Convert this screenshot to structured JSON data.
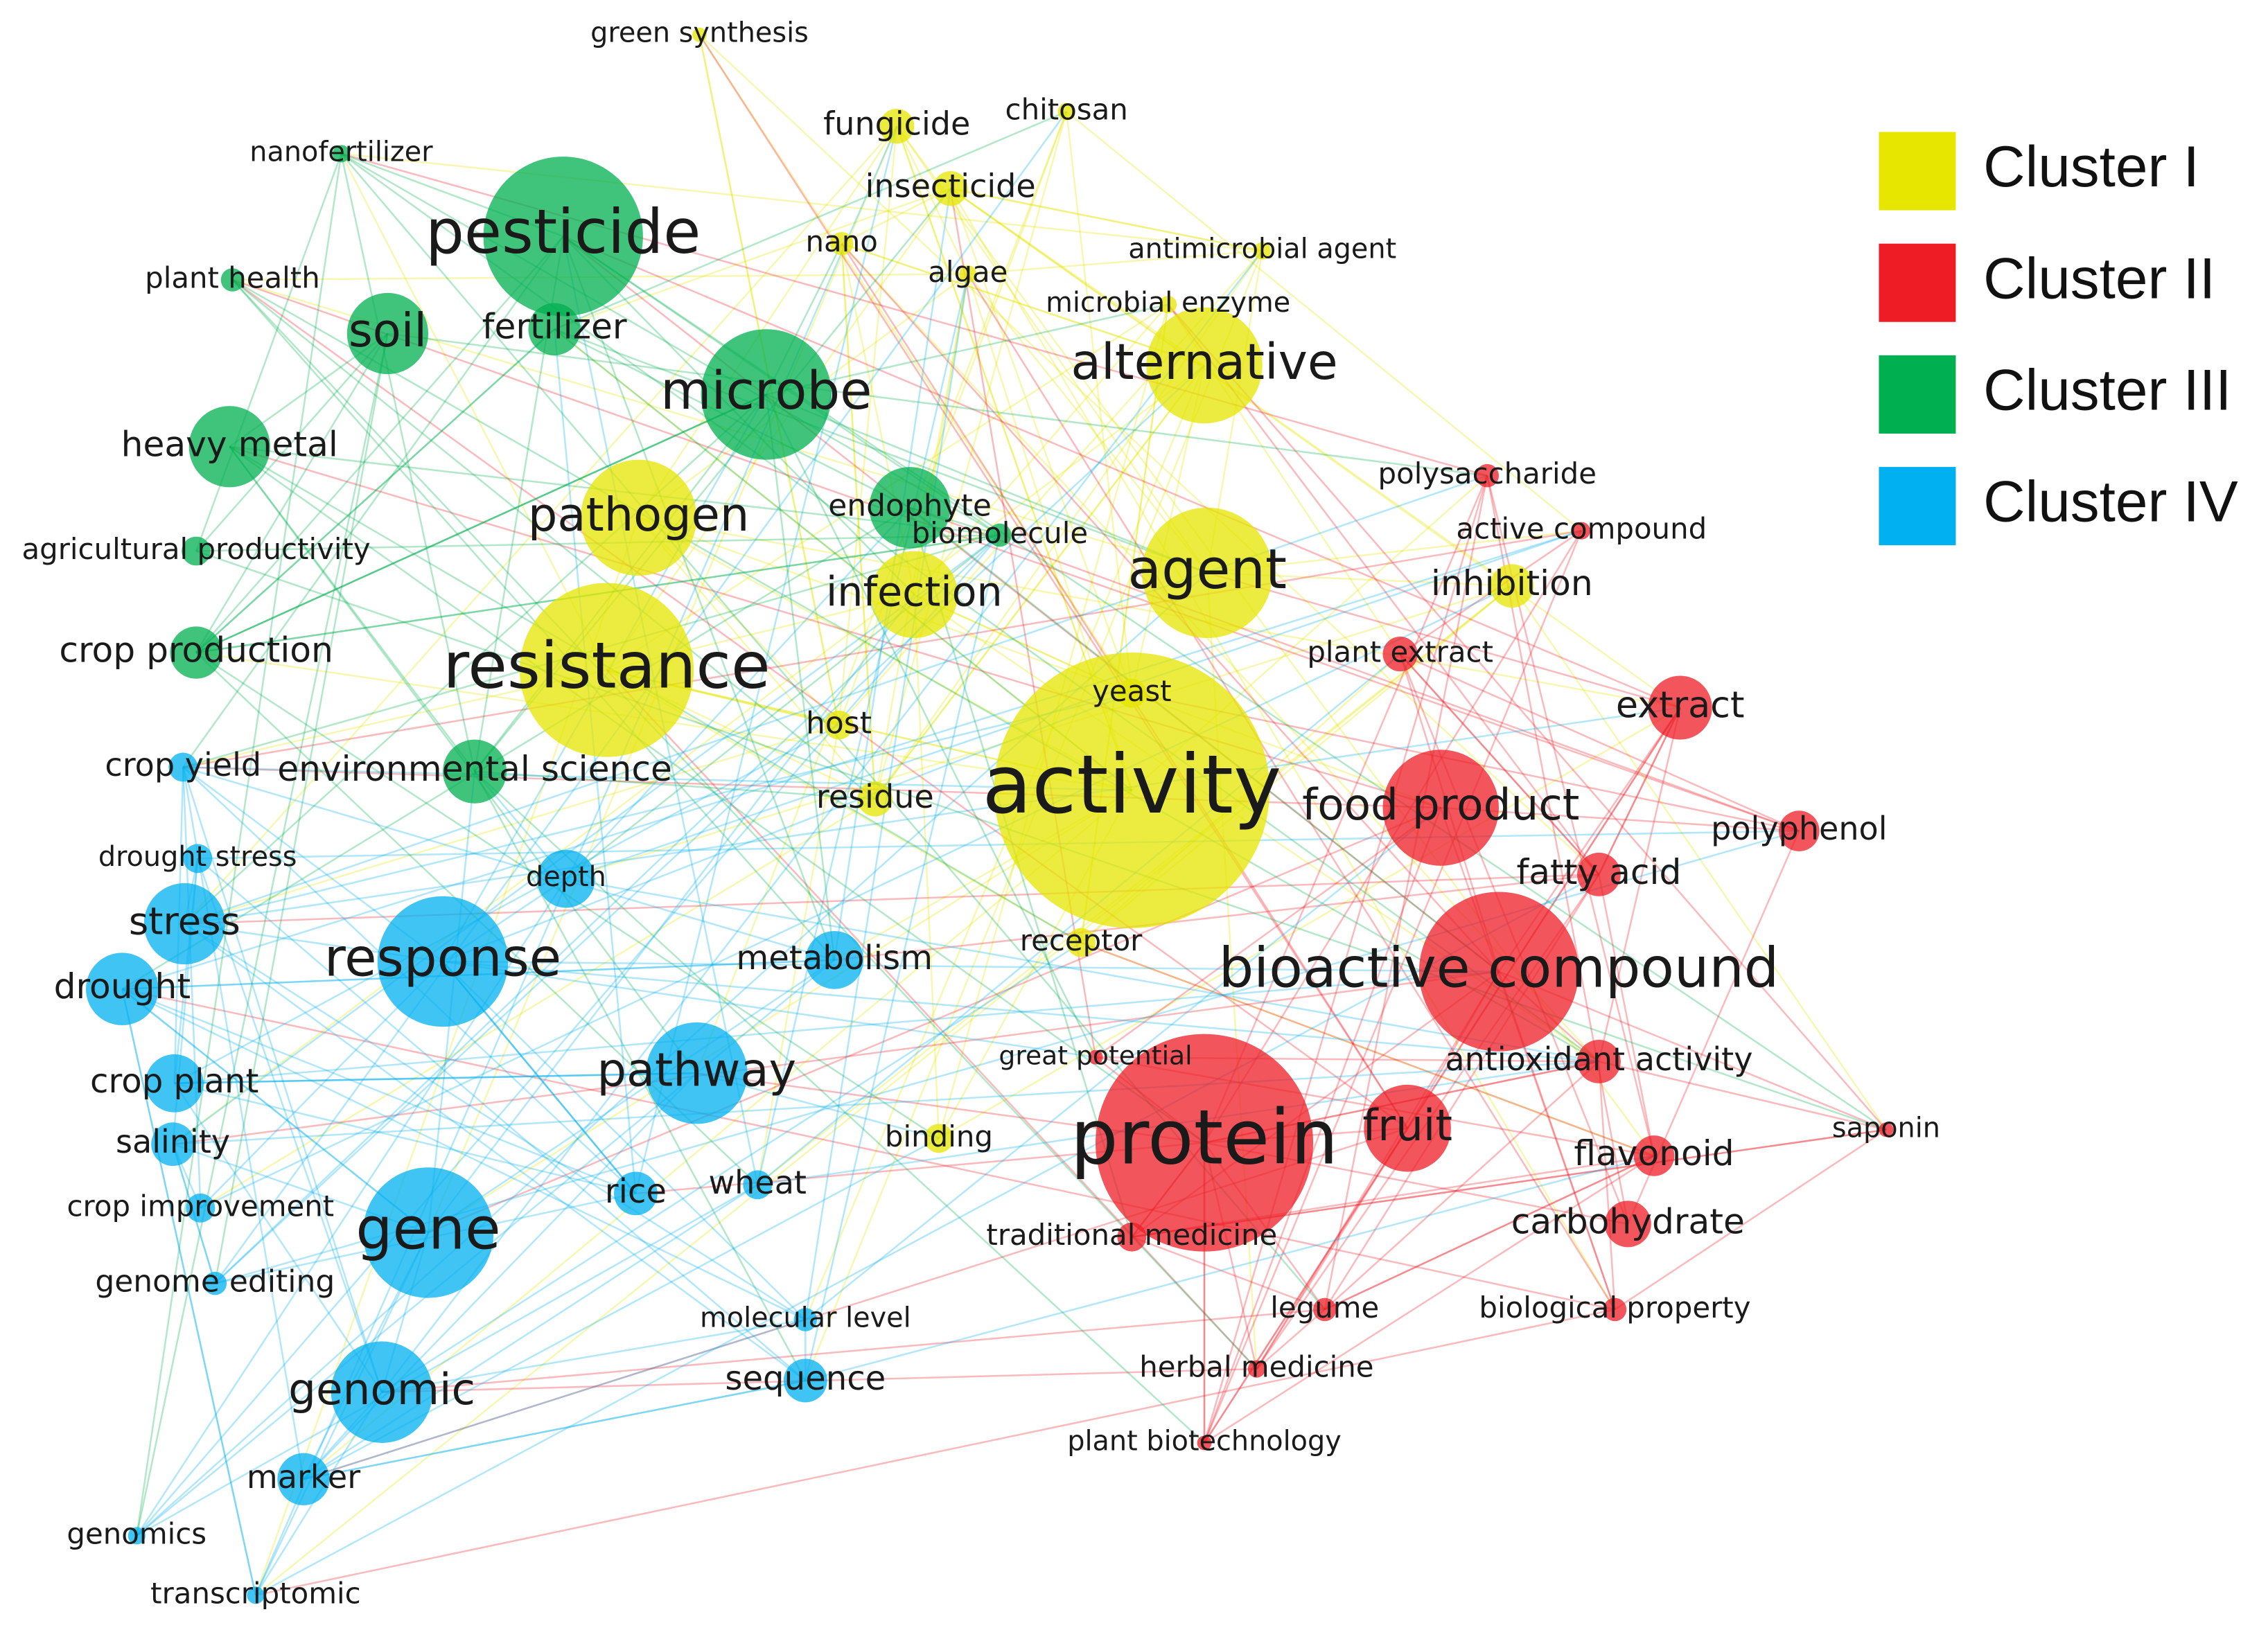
{
  "clusters": [
    {
      "name": "Cluster I",
      "color": "#e6e600",
      "nodes": [
        "activity",
        "resistance",
        "agent",
        "alternative",
        "pathogen",
        "infection",
        "inhibition",
        "fungicide",
        "insecticide",
        "chitosan",
        "nano",
        "algae",
        "antimicrobial agent",
        "microbial enzyme",
        "yeast",
        "receptor",
        "residue",
        "host",
        "green synthesis",
        "binding"
      ]
    },
    {
      "name": "Cluster II",
      "color": "#ee1c25",
      "nodes": [
        "protein",
        "bioactive compound",
        "food product",
        "extract",
        "polyphenol",
        "fatty acid",
        "fruit",
        "antioxidant activity",
        "flavonoid",
        "carbohydrate",
        "polysaccharide",
        "active compound",
        "plant extract",
        "saponin",
        "legume",
        "biological property",
        "herbal medicine",
        "plant biotechnology",
        "traditional medicine",
        "great potential"
      ]
    },
    {
      "name": "Cluster III",
      "color": "#00b050",
      "nodes": [
        "pesticide",
        "microbe",
        "soil",
        "fertilizer",
        "heavy metal",
        "plant health",
        "nanofertilizer",
        "agricultural productivity",
        "crop production",
        "environmental science",
        "endophyte",
        "biomolecule"
      ]
    },
    {
      "name": "Cluster IV",
      "color": "#00b0f0",
      "nodes": [
        "response",
        "gene",
        "pathway",
        "genomic",
        "stress",
        "drought",
        "crop plant",
        "salinity",
        "crop improvement",
        "genome editing",
        "crop yield",
        "drought stress",
        "depth",
        "metabolism",
        "rice",
        "wheat",
        "molecular level",
        "sequence",
        "marker",
        "genomics",
        "transcriptomic"
      ]
    }
  ]
}
